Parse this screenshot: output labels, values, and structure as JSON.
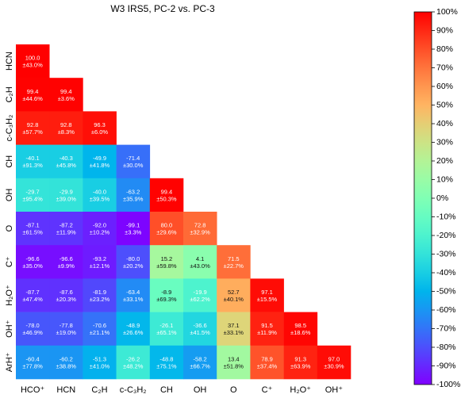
{
  "chart_data": {
    "type": "heatmap",
    "title": "W3 IRS5, PC-2 vs. PC-3",
    "x_labels": [
      "HCO⁺",
      "HCN",
      "C₂H",
      "c-C₃H₂",
      "CH",
      "OH",
      "O",
      "C⁺",
      "H₂O⁺",
      "OH⁺"
    ],
    "y_labels": [
      "HCN",
      "C₂H",
      "c-C₃H₂",
      "CH",
      "OH",
      "O",
      "C⁺",
      "H₂O⁺",
      "OH⁺",
      "ArH⁺"
    ],
    "value_range": [
      -100,
      100
    ],
    "colorbar_ticks": [
      "100%",
      "90%",
      "80%",
      "70%",
      "60%",
      "50%",
      "40%",
      "30%",
      "20%",
      "10%",
      "0%",
      "-10%",
      "-20%",
      "-30%",
      "-40%",
      "-50%",
      "-60%",
      "-70%",
      "-80%",
      "-90%",
      "-100%"
    ],
    "colormap": "rainbow",
    "values": [
      [
        100.0
      ],
      [
        99.4,
        99.4
      ],
      [
        92.8,
        92.8,
        96.3
      ],
      [
        -40.1,
        -40.3,
        -49.9,
        -71.4
      ],
      [
        -29.7,
        -29.9,
        -40.0,
        -63.2,
        99.4
      ],
      [
        -87.1,
        -87.2,
        -92.0,
        -99.1,
        80.0,
        72.8
      ],
      [
        -96.6,
        -96.6,
        -93.2,
        -80.0,
        15.2,
        4.1,
        71.5
      ],
      [
        -87.7,
        -87.6,
        -81.9,
        -63.4,
        -8.9,
        -19.9,
        52.7,
        97.1
      ],
      [
        -78.0,
        -77.8,
        -70.6,
        -48.9,
        -26.1,
        -36.6,
        37.1,
        91.5,
        98.5
      ],
      [
        -60.4,
        -60.2,
        -51.3,
        -26.2,
        -48.8,
        -58.2,
        13.4,
        78.9,
        91.3,
        97.0
      ]
    ],
    "uncertainties": [
      [
        "±43.0%"
      ],
      [
        "±44.6%",
        "±3.6%"
      ],
      [
        "±57.7%",
        "±8.3%",
        "±6.0%"
      ],
      [
        "±91.3%",
        "±45.8%",
        "±41.8%",
        "±30.0%"
      ],
      [
        "±95.4%",
        "±39.0%",
        "±39.5%",
        "±35.9%",
        "±50.3%"
      ],
      [
        "±61.5%",
        "±11.9%",
        "±10.2%",
        "±3.3%",
        "±29.6%",
        "±32.9%"
      ],
      [
        "±35.0%",
        "±9.9%",
        "±12.1%",
        "±20.2%",
        "±59.8%",
        "±43.0%",
        "±22.7%"
      ],
      [
        "±47.4%",
        "±20.3%",
        "±23.2%",
        "±33.1%",
        "±69.3%",
        "±62.2%",
        "±40.1%",
        "±15.5%"
      ],
      [
        "±46.9%",
        "±19.0%",
        "±21.1%",
        "±26.6%",
        "±65.1%",
        "±41.5%",
        "±33.1%",
        "±11.9%",
        "±18.6%"
      ],
      [
        "±77.8%",
        "±38.8%",
        "±41.0%",
        "±48.2%",
        "±75.1%",
        "±66.7%",
        "±51.8%",
        "±37.4%",
        "±63.9%",
        "±30.9%"
      ]
    ]
  }
}
